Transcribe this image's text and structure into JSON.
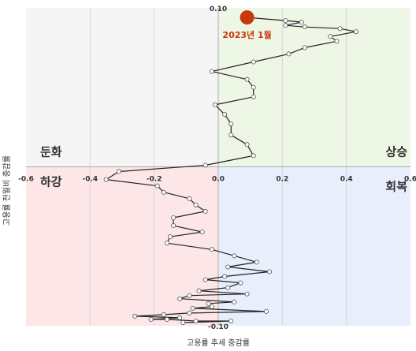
{
  "chart_data": {
    "type": "scatter",
    "xlabel": "고용률 추세 증감률",
    "ylabel": "고용률 전월비 증감률",
    "xlim": [
      -0.6,
      0.6
    ],
    "ylim": [
      -0.1,
      0.1
    ],
    "x_ticks": [
      {
        "value": -0.6,
        "label": "-0.6"
      },
      {
        "value": -0.4,
        "label": "-0.4"
      },
      {
        "value": -0.2,
        "label": "-0.2"
      },
      {
        "value": 0.0,
        "label": "0.0"
      },
      {
        "value": 0.2,
        "label": "0.2"
      },
      {
        "value": 0.4,
        "label": "0.4"
      },
      {
        "value": 0.6,
        "label": "0.6"
      }
    ],
    "y_ticks": [
      {
        "value": 0.1,
        "label": "0.10"
      },
      {
        "value": -0.1,
        "label": "-0.10"
      }
    ],
    "grid": true,
    "quadrants": [
      {
        "label": "둔화",
        "color": "#f5f5f5"
      },
      {
        "label": "상승",
        "color": "#eef6e6"
      },
      {
        "label": "하강",
        "color": "#fde6e8"
      },
      {
        "label": "회복",
        "color": "#e8eefb"
      }
    ],
    "line_color": "#222222",
    "marker_color": "#ffffff",
    "highlight_color": "#c8380a",
    "annotation": {
      "label": "2023년 1월",
      "x": 0.09,
      "y": 0.094
    },
    "series": [
      {
        "points": [
          {
            "x": 0.09,
            "y": 0.094
          },
          {
            "x": 0.21,
            "y": 0.092
          },
          {
            "x": 0.26,
            "y": 0.091
          },
          {
            "x": 0.21,
            "y": 0.089
          },
          {
            "x": 0.27,
            "y": 0.088
          },
          {
            "x": 0.38,
            "y": 0.087
          },
          {
            "x": 0.43,
            "y": 0.085
          },
          {
            "x": 0.35,
            "y": 0.082
          },
          {
            "x": 0.37,
            "y": 0.079
          },
          {
            "x": 0.27,
            "y": 0.075
          },
          {
            "x": 0.22,
            "y": 0.071
          },
          {
            "x": 0.11,
            "y": 0.066
          },
          {
            "x": -0.02,
            "y": 0.06
          },
          {
            "x": 0.09,
            "y": 0.055
          },
          {
            "x": 0.11,
            "y": 0.05
          },
          {
            "x": 0.11,
            "y": 0.044
          },
          {
            "x": -0.01,
            "y": 0.039
          },
          {
            "x": 0.02,
            "y": 0.033
          },
          {
            "x": 0.04,
            "y": 0.027
          },
          {
            "x": 0.04,
            "y": 0.02
          },
          {
            "x": 0.09,
            "y": 0.014
          },
          {
            "x": 0.11,
            "y": 0.007
          },
          {
            "x": -0.04,
            "y": 0.001
          },
          {
            "x": -0.31,
            "y": -0.003
          },
          {
            "x": -0.35,
            "y": -0.008
          },
          {
            "x": -0.19,
            "y": -0.012
          },
          {
            "x": -0.17,
            "y": -0.016
          },
          {
            "x": -0.09,
            "y": -0.02
          },
          {
            "x": -0.07,
            "y": -0.024
          },
          {
            "x": -0.04,
            "y": -0.028
          },
          {
            "x": -0.14,
            "y": -0.032
          },
          {
            "x": -0.14,
            "y": -0.037
          },
          {
            "x": -0.05,
            "y": -0.041
          },
          {
            "x": -0.15,
            "y": -0.044
          },
          {
            "x": -0.16,
            "y": -0.048
          },
          {
            "x": -0.02,
            "y": -0.052
          },
          {
            "x": 0.05,
            "y": -0.056
          },
          {
            "x": 0.12,
            "y": -0.06
          },
          {
            "x": 0.03,
            "y": -0.063
          },
          {
            "x": 0.16,
            "y": -0.066
          },
          {
            "x": 0.02,
            "y": -0.069
          },
          {
            "x": -0.04,
            "y": -0.071
          },
          {
            "x": 0.07,
            "y": -0.073
          },
          {
            "x": 0.03,
            "y": -0.076
          },
          {
            "x": -0.06,
            "y": -0.078
          },
          {
            "x": 0.09,
            "y": -0.08
          },
          {
            "x": -0.09,
            "y": -0.081
          },
          {
            "x": -0.12,
            "y": -0.083
          },
          {
            "x": 0.05,
            "y": -0.085
          },
          {
            "x": -0.03,
            "y": -0.086
          },
          {
            "x": -0.02,
            "y": -0.088
          },
          {
            "x": -0.08,
            "y": -0.089
          },
          {
            "x": 0.15,
            "y": -0.091
          },
          {
            "x": -0.09,
            "y": -0.092
          },
          {
            "x": -0.17,
            "y": -0.093
          },
          {
            "x": -0.26,
            "y": -0.094
          },
          {
            "x": -0.12,
            "y": -0.095
          },
          {
            "x": -0.21,
            "y": -0.096
          },
          {
            "x": -0.16,
            "y": -0.096
          },
          {
            "x": -0.07,
            "y": -0.097
          },
          {
            "x": 0.04,
            "y": -0.097
          },
          {
            "x": -0.11,
            "y": -0.098
          }
        ]
      }
    ]
  }
}
